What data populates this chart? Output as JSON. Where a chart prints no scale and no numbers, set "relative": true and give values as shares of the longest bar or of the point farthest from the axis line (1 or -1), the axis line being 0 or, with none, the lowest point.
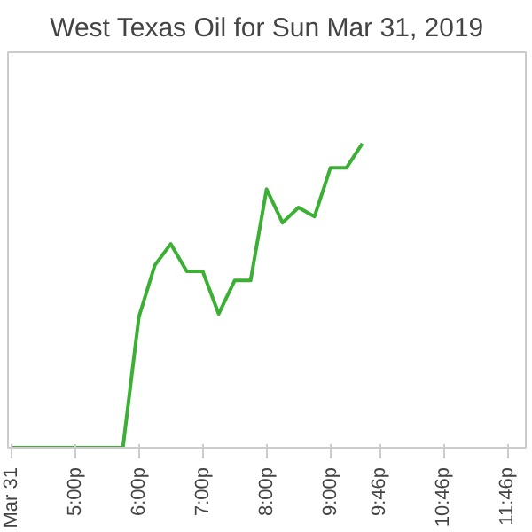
{
  "chart_data": {
    "type": "line",
    "title": "West Texas Oil for Sun Mar 31, 2019",
    "relative": true,
    "grid": false,
    "marker": "none",
    "line_style": "solid",
    "x": [
      16,
      17.75,
      18,
      18.25,
      18.5,
      18.75,
      19,
      19.25,
      19.5,
      19.75,
      20,
      20.25,
      20.5,
      20.75,
      21,
      21.25,
      21.5
    ],
    "xlim": [
      15.95,
      24.06
    ],
    "xticks": [
      {
        "value": 16,
        "label": "Mar 31"
      },
      {
        "value": 17,
        "label": "5:00p"
      },
      {
        "value": 18,
        "label": "6:00p"
      },
      {
        "value": 19,
        "label": "7:00p"
      },
      {
        "value": 20,
        "label": "8:00p"
      },
      {
        "value": 21,
        "label": "9:00p"
      },
      {
        "value": 21.77,
        "label": "9:46p"
      },
      {
        "value": 22.77,
        "label": "10:46p"
      },
      {
        "value": 23.77,
        "label": "11:46p"
      }
    ],
    "series": [
      {
        "color": "#3cb034",
        "values": [
          0,
          0,
          0.43,
          0.6,
          0.67,
          0.58,
          0.58,
          0.44,
          0.55,
          0.55,
          0.85,
          0.74,
          0.79,
          0.76,
          0.92,
          0.92,
          1
        ]
      }
    ]
  }
}
